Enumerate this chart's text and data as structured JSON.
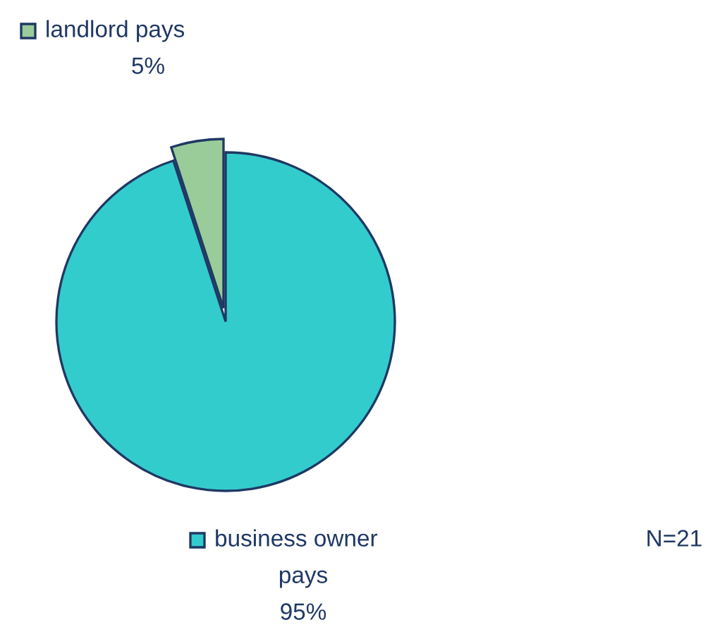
{
  "chart_data": {
    "type": "pie",
    "categories": [
      "landlord pays",
      "business owner pays"
    ],
    "values": [
      5,
      95
    ],
    "colors": [
      "#99cc99",
      "#33cccc"
    ],
    "value_labels": [
      "5%",
      "95%"
    ],
    "legend": "left",
    "annotations": [
      "N=21"
    ]
  }
}
